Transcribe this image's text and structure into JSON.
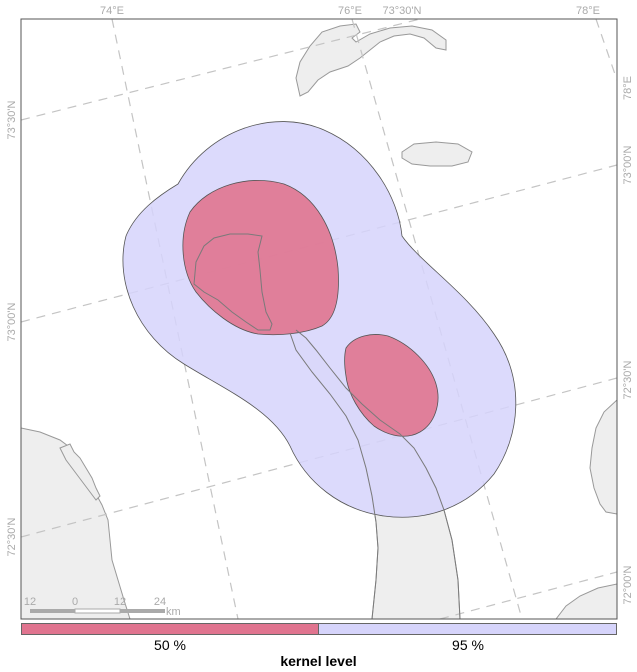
{
  "map": {
    "top_labels": [
      "74°E",
      "76°E",
      "73°30'N",
      "78°E"
    ],
    "left_labels": [
      "73°30'N",
      "73°00'N",
      "72°30'N"
    ],
    "right_labels": [
      "78°E",
      "73°00'N",
      "72°30'N",
      "72°00'N"
    ],
    "scale_bar": {
      "ticks": [
        "12",
        "0",
        "12",
        "24"
      ],
      "unit": "km"
    }
  },
  "legend": {
    "title": "kernel level",
    "items": [
      {
        "label": "50 %",
        "color": "#e0748f"
      },
      {
        "label": "95 %",
        "color": "#d6d4fb"
      }
    ]
  },
  "colors": {
    "land": "#eeeeee",
    "coast": "#999999",
    "kernel_95": "#d6d4fb",
    "kernel_50": "#e0748f",
    "graticule": "#c4c4c4"
  }
}
